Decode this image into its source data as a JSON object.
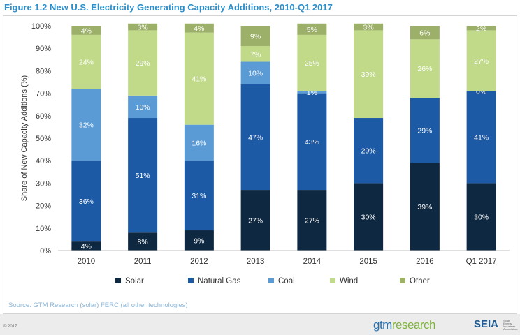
{
  "chart_data": {
    "type": "bar",
    "stacked": true,
    "title": "Figure 1.2 New U.S. Electricity Generating Capacity Additions, 2010-Q1 2017",
    "ylabel": "Share of New Capacity Additions (%)",
    "xlabel": "",
    "ylim": [
      0,
      100
    ],
    "yticks": [
      "0%",
      "10%",
      "20%",
      "30%",
      "40%",
      "50%",
      "60%",
      "70%",
      "80%",
      "90%",
      "100%"
    ],
    "categories": [
      "2010",
      "2011",
      "2012",
      "2013",
      "2014",
      "2015",
      "2016",
      "Q1 2017"
    ],
    "series": [
      {
        "name": "Solar",
        "color": "#0e2841",
        "label_color": "#ffffff",
        "values": [
          4,
          8,
          9,
          27,
          27,
          30,
          39,
          30
        ],
        "labels": [
          "4%",
          "8%",
          "9%",
          "27%",
          "27%",
          "30%",
          "39%",
          "30%"
        ]
      },
      {
        "name": "Natural Gas",
        "color": "#1c5aa6",
        "label_color": "#ffffff",
        "values": [
          36,
          51,
          31,
          47,
          43,
          29,
          29,
          41
        ],
        "labels": [
          "36%",
          "51%",
          "31%",
          "47%",
          "43%",
          "29%",
          "29%",
          "41%"
        ]
      },
      {
        "name": "Coal",
        "color": "#5b9bd5",
        "label_color": "#ffffff",
        "values": [
          32,
          10,
          16,
          10,
          1,
          0,
          0,
          0
        ],
        "labels": [
          "32%",
          "10%",
          "16%",
          "10%",
          "1%",
          "",
          "",
          "0%"
        ]
      },
      {
        "name": "Wind",
        "color": "#c1da8a",
        "label_color": "#ffffff",
        "values": [
          24,
          29,
          41,
          7,
          25,
          39,
          26,
          27
        ],
        "labels": [
          "24%",
          "29%",
          "41%",
          "7%",
          "25%",
          "39%",
          "26%",
          "27%"
        ]
      },
      {
        "name": "Other",
        "color": "#9cb069",
        "label_color": "#ffffff",
        "values": [
          4,
          3,
          4,
          9,
          5,
          3,
          6,
          2
        ],
        "labels": [
          "4%",
          "3%",
          "4%",
          "9%",
          "5%",
          "3%",
          "6%",
          "2%"
        ]
      }
    ],
    "legend": "bottom"
  },
  "source": "Source: GTM Research (solar) FERC (all other technologies)",
  "copyright": "© 2017",
  "logos": {
    "gtm_a": "gtm",
    "gtm_b": "research",
    "seia": "SEIA",
    "seia_sub": "Solar Energy Industries Association"
  }
}
